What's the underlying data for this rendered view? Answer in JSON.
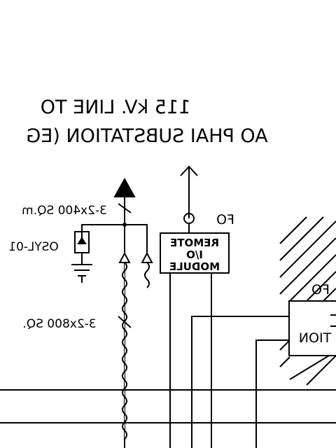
{
  "title": {
    "line1": "115 kV. LINE TO",
    "line2": "AO PHAI SUBSTATION (EG"
  },
  "cables": {
    "upper": "3-2x400 SQ.m",
    "lower": "3-2x800 SQ."
  },
  "arrester": {
    "label": "OSYL-01"
  },
  "fo": {
    "label_top": "FO",
    "label_right": "FO"
  },
  "remote_io": {
    "line1": "REMOTE",
    "line2": "I/O",
    "line3": "MODULE"
  },
  "substation_box": {
    "partial_label": "TION"
  },
  "note": "Drawing is rendered mirrored horizontally, as in the source image.",
  "colors": {
    "ink": "#000000",
    "paper": "#ffffff"
  }
}
